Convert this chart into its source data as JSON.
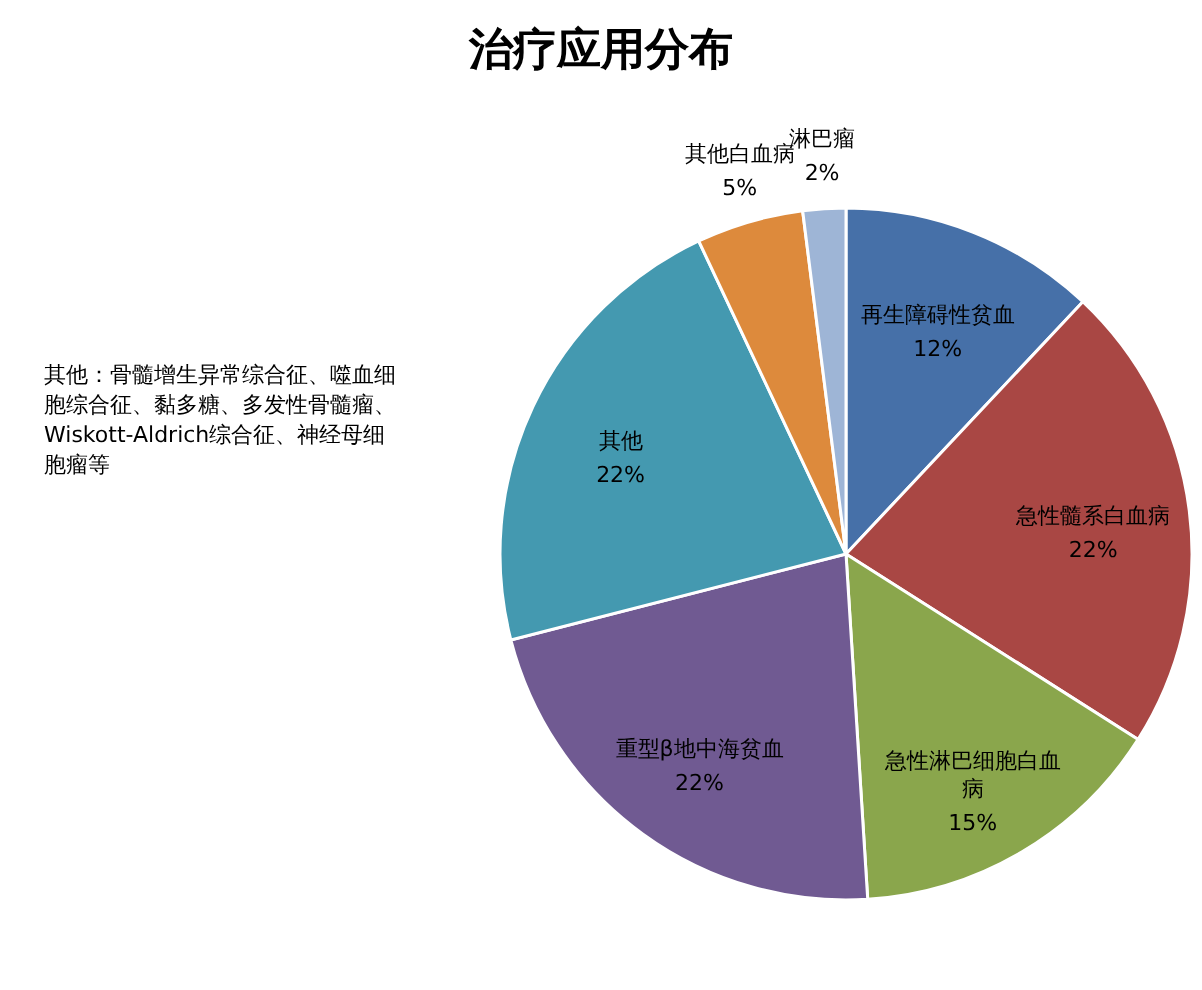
{
  "chart_data": {
    "type": "pie",
    "title": "治疗应用分布",
    "categories": [
      "再生障碍性贫血",
      "急性髓系白血病",
      "急性淋巴细胞白血病",
      "重型β地中海贫血",
      "其他",
      "其他白血病",
      "淋巴瘤"
    ],
    "values": [
      12,
      22,
      15,
      22,
      22,
      5,
      2
    ],
    "value_labels": [
      "12%",
      "22%",
      "15%",
      "22%",
      "22%",
      "5%",
      "2%"
    ],
    "colors": [
      "#4670a8",
      "#a94744",
      "#8aa64c",
      "#705a92",
      "#4499b0",
      "#dd8a3c",
      "#9eb5d6"
    ],
    "annotations": [
      "其他：骨髓增生异常综合征、噬血细胞综合征、黏多糖、多发性骨髓瘤、Wiskott-Aldrich综合征、神经母细胞瘤等"
    ]
  }
}
